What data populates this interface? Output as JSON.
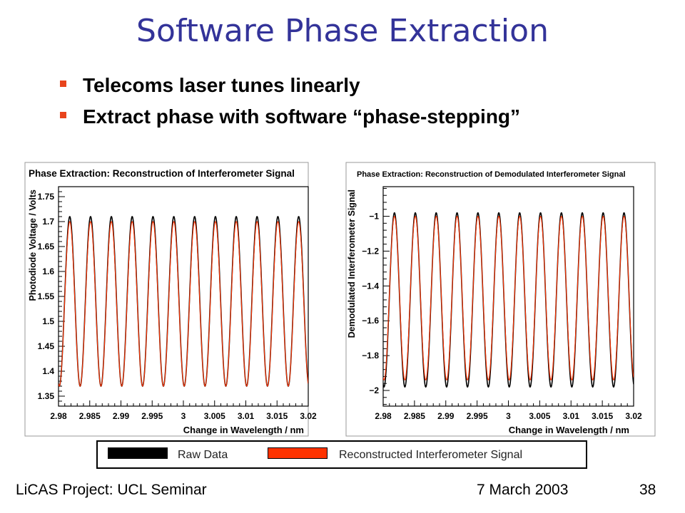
{
  "slide": {
    "title": "Software Phase Extraction",
    "bullets": [
      "Telecoms laser tunes linearly",
      "Extract phase with software “phase-stepping”"
    ],
    "accent_color": "#e8441c",
    "title_color": "#333399"
  },
  "legend": {
    "items": [
      {
        "label": "Raw Data",
        "color": "#000000"
      },
      {
        "label": "Reconstructed Interferometer Signal",
        "color": "#ff3300"
      }
    ]
  },
  "footer": {
    "left": "LiCAS Project: UCL Seminar",
    "center": "7 March 2003",
    "page": "38"
  },
  "chart_data": [
    {
      "type": "line",
      "title": "Phase Extraction: Reconstruction of Interferometer Signal",
      "xlabel": "Change in Wavelength / nm",
      "ylabel": "Photodiode Voltage / Volts",
      "xlim": [
        2.98,
        3.02
      ],
      "ylim": [
        1.33,
        1.77
      ],
      "x_ticks": [
        "2.98",
        "2.985",
        "2.99",
        "2.995",
        "3",
        "3.005",
        "3.01",
        "3.015",
        "3.02"
      ],
      "y_ticks": [
        "1.35",
        "1.4",
        "1.45",
        "1.5",
        "1.55",
        "1.6",
        "1.65",
        "1.7",
        "1.75"
      ],
      "grid": false,
      "series": [
        {
          "name": "Raw Data",
          "color": "#000000",
          "form": "sinusoid",
          "center": 1.54,
          "amplitude": 0.17,
          "cycles": 12,
          "x_start": 2.98,
          "x_end": 3.02
        },
        {
          "name": "Reconstructed Interferometer Signal",
          "color": "#ff3300",
          "form": "sinusoid",
          "center": 1.535,
          "amplitude": 0.165,
          "cycles": 12,
          "x_start": 2.98,
          "x_end": 3.02
        }
      ]
    },
    {
      "type": "line",
      "title": "Phase Extraction: Reconstruction of Demodulated Interferometer Signal",
      "xlabel": "Change in Wavelength / nm",
      "ylabel": "Demodulated Interferometer Signal",
      "xlim": [
        2.98,
        3.02
      ],
      "ylim": [
        -2.09,
        -0.83
      ],
      "x_ticks": [
        "2.98",
        "2.985",
        "2.99",
        "2.995",
        "3",
        "3.005",
        "3.01",
        "3.015",
        "3.02"
      ],
      "y_ticks": [
        "-2",
        "-1.8",
        "-1.6",
        "-1.4",
        "-1.2",
        "-1"
      ],
      "grid": false,
      "series": [
        {
          "name": "Raw Data",
          "color": "#000000",
          "form": "sinusoid",
          "center": -1.48,
          "amplitude": 0.5,
          "cycles": 12,
          "x_start": 2.98,
          "x_end": 3.02
        },
        {
          "name": "Reconstructed Interferometer Signal",
          "color": "#ff3300",
          "form": "sinusoid",
          "center": -1.47,
          "amplitude": 0.47,
          "cycles": 12,
          "x_start": 2.98,
          "x_end": 3.02
        }
      ]
    }
  ]
}
